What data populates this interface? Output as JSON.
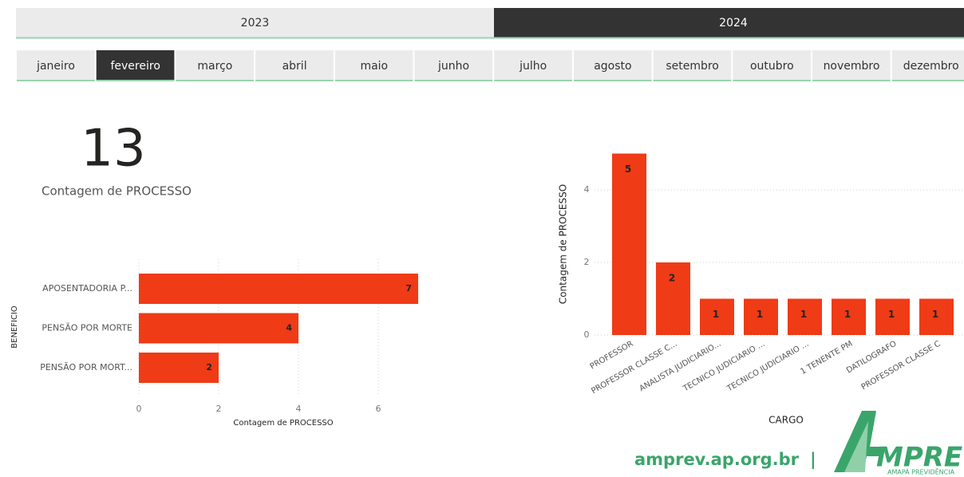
{
  "years": [
    {
      "label": "2023",
      "selected": false
    },
    {
      "label": "2024",
      "selected": true
    }
  ],
  "months": [
    {
      "label": "janeiro",
      "selected": false
    },
    {
      "label": "fevereiro",
      "selected": true
    },
    {
      "label": "março",
      "selected": false
    },
    {
      "label": "abril",
      "selected": false
    },
    {
      "label": "maio",
      "selected": false
    },
    {
      "label": "junho",
      "selected": false
    },
    {
      "label": "julho",
      "selected": false
    },
    {
      "label": "agosto",
      "selected": false
    },
    {
      "label": "setembro",
      "selected": false
    },
    {
      "label": "outubro",
      "selected": false
    },
    {
      "label": "novembro",
      "selected": false
    },
    {
      "label": "dezembro",
      "selected": false
    }
  ],
  "kpi": {
    "value": "13",
    "label": "Contagem de PROCESSO"
  },
  "chart_data": [
    {
      "type": "hbar",
      "x_label": "Contagem de PROCESSO",
      "y_label": "BENEFICIO",
      "categories": [
        "APOSENTADORIA P...",
        "PENSÃO POR MORTE",
        "PENSÃO POR MORT..."
      ],
      "values": [
        7,
        4,
        2
      ],
      "color": "#ef3b16",
      "xlim": [
        0,
        7.3
      ],
      "xticks": [
        0,
        2,
        4,
        6
      ],
      "grid": true
    },
    {
      "type": "bar",
      "x_label": "CARGO",
      "y_label": "Contagem de PROCESSO",
      "categories": [
        "PROFESSOR",
        "PROFESSOR CLASSE C...",
        "ANALISTA JUDICIARIO...",
        "TECNICO JUDICIARIO ...",
        "TECNICO JUDICIARIO ...",
        "1 TENENTE PM",
        "DATILOGRAFO",
        "PROFESSOR CLASSE C"
      ],
      "values": [
        5,
        2,
        1,
        1,
        1,
        1,
        1,
        1
      ],
      "color": "#ef3b16",
      "ylim": [
        0,
        5.2
      ],
      "yticks": [
        0,
        2,
        4
      ],
      "grid": true
    }
  ],
  "footer": {
    "site": "amprev.ap.org.br",
    "separator": "|",
    "logo_text": "MPREV",
    "logo_subtitle": "AMAPÁ PREVIDÊNCIA"
  }
}
